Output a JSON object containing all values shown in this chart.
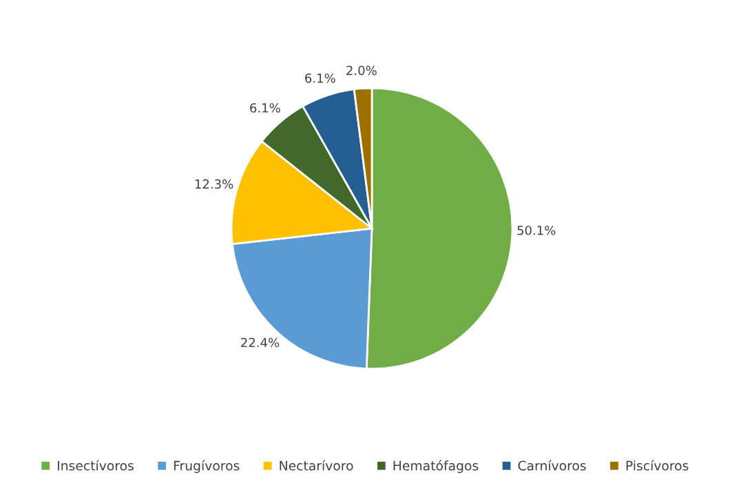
{
  "chart_data": {
    "type": "pie",
    "categories": [
      "Insectívoros",
      "Frugívoros",
      "Nectarívoro",
      "Hematófagos",
      "Carnívoros",
      "Piscívoros"
    ],
    "values": [
      50.1,
      22.4,
      12.3,
      6.1,
      6.1,
      2.0
    ],
    "colors": [
      "#70ad47",
      "#5b9bd5",
      "#ffc000",
      "#43682b",
      "#255e91",
      "#9e7000"
    ],
    "value_labels": [
      "50.1%",
      "22.4%",
      "12.3%",
      "6.1%",
      "6.1%",
      "2.0%"
    ],
    "legend": "bottom"
  }
}
